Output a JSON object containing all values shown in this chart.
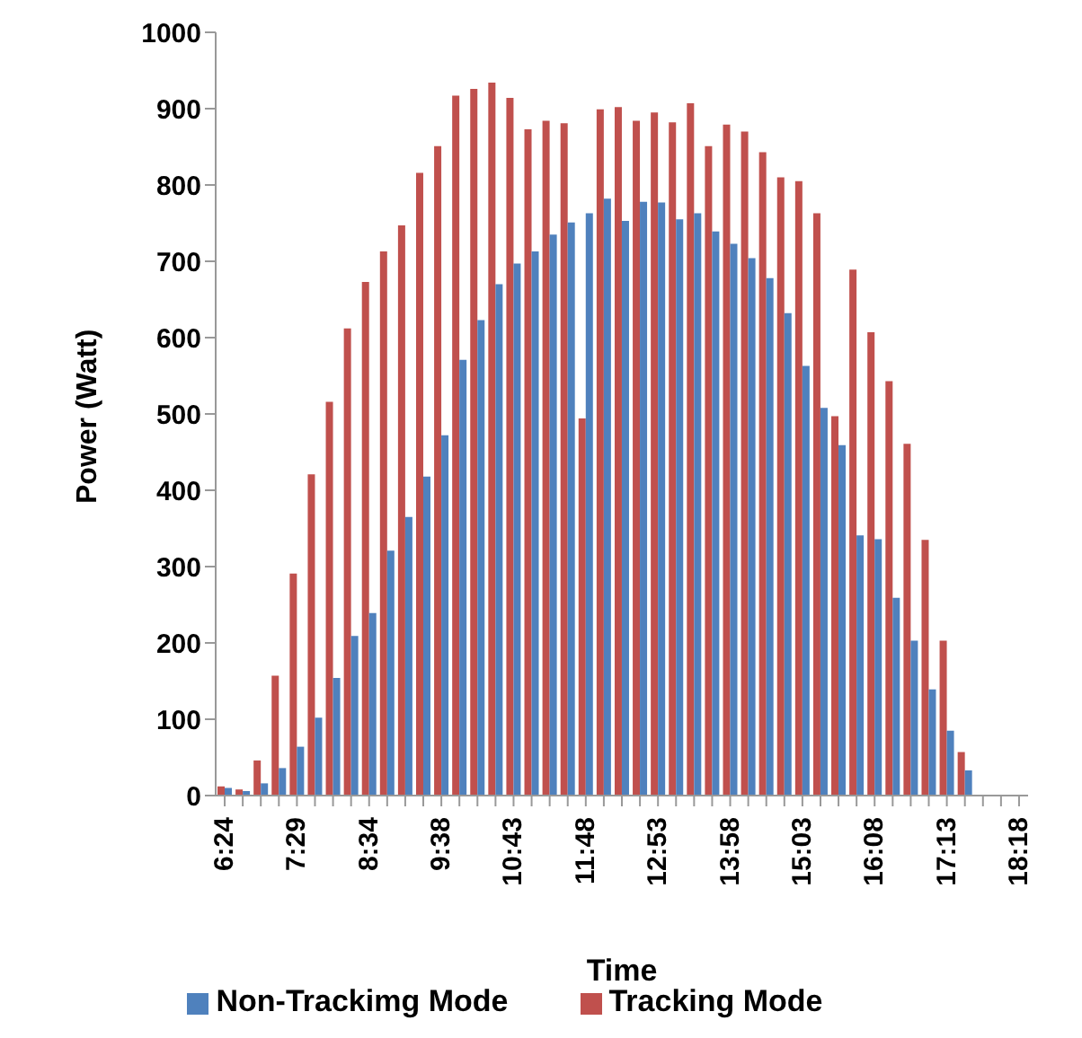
{
  "chart_data": {
    "type": "bar",
    "xlabel": "Time",
    "ylabel": "Power (Watt)",
    "categories": [
      "6:24",
      null,
      null,
      null,
      "7:29",
      null,
      null,
      null,
      "8:34",
      null,
      null,
      null,
      "9:38",
      null,
      null,
      null,
      "10:43",
      null,
      null,
      null,
      "11:48",
      null,
      null,
      null,
      "12:53",
      null,
      null,
      null,
      "13:58",
      null,
      null,
      null,
      "15:03",
      null,
      null,
      null,
      "16:08",
      null,
      null,
      null,
      "17:13",
      null,
      null,
      null,
      "18:18"
    ],
    "series": [
      {
        "name": "Tracking Mode",
        "color": "#c0504d",
        "values": [
          12,
          8,
          46,
          157,
          291,
          421,
          516,
          612,
          673,
          713,
          747,
          816,
          851,
          917,
          926,
          934,
          914,
          873,
          884,
          881,
          494,
          899,
          902,
          884,
          895,
          882,
          907,
          851,
          879,
          870,
          843,
          810,
          805,
          763,
          497,
          689,
          607,
          543,
          461,
          335,
          203,
          57,
          null,
          null,
          null
        ]
      },
      {
        "name": "Non-Trackimg Mode",
        "color": "#4f81bd",
        "values": [
          10,
          6,
          16,
          36,
          64,
          102,
          154,
          209,
          239,
          321,
          365,
          418,
          472,
          571,
          623,
          670,
          697,
          713,
          735,
          751,
          763,
          782,
          753,
          778,
          777,
          755,
          763,
          739,
          723,
          704,
          678,
          632,
          563,
          508,
          459,
          341,
          336,
          259,
          203,
          139,
          85,
          33,
          null,
          null,
          null
        ]
      }
    ],
    "ylim": [
      0,
      1000
    ],
    "yticks": [
      0,
      100,
      200,
      300,
      400,
      500,
      600,
      700,
      800,
      900,
      1000
    ],
    "grid": false,
    "legend": "bottom"
  }
}
